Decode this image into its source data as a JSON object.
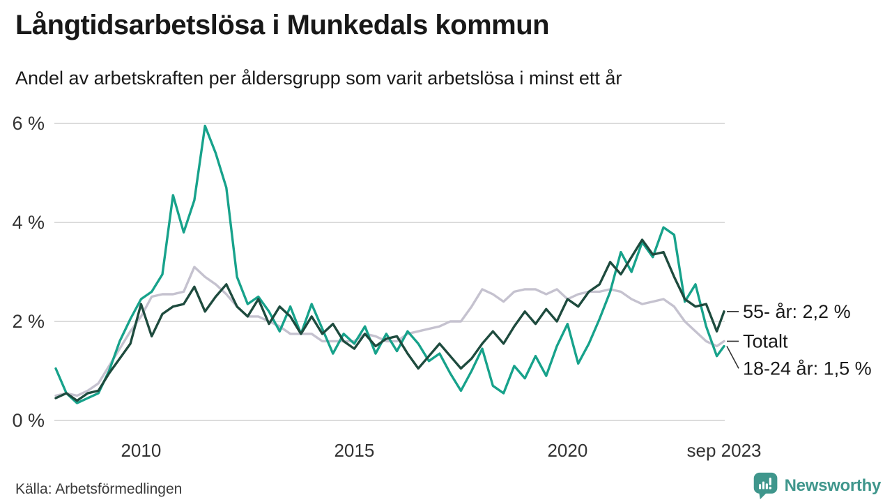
{
  "title": "Långtidsarbetslösa i Munkedals kommun",
  "subtitle": "Andel av arbetskraften per åldersgrupp som varit arbetslösa i minst ett år",
  "source": "Källa: Arbetsförmedlingen",
  "branding": {
    "name": "Newsworthy",
    "color": "#3f968c",
    "icon": "bar-chart-speech-bubble"
  },
  "colors": {
    "series_18_24": "#17a28b",
    "series_55plus": "#1e4b3e",
    "series_total": "#c5c2cf",
    "gridline": "#dcdcdc",
    "text": "#1a1a1a"
  },
  "chart_data": {
    "type": "line",
    "title": "Långtidsarbetslösa i Munkedals kommun",
    "subtitle": "Andel av arbetskraften per åldersgrupp som varit arbetslösa i minst ett år",
    "xlabel": "",
    "ylabel": "",
    "grid": "horizontal",
    "legend_position": "end-of-line-labels",
    "xlim": [
      2008,
      2023.67
    ],
    "ylim": [
      0,
      6
    ],
    "y_ticks": [
      {
        "value": 0,
        "label": "0 %"
      },
      {
        "value": 2,
        "label": "2 %"
      },
      {
        "value": 4,
        "label": "4 %"
      },
      {
        "value": 6,
        "label": "6 %"
      }
    ],
    "x_ticks": [
      {
        "value": 2010,
        "label": "2010"
      },
      {
        "value": 2015,
        "label": "2015"
      },
      {
        "value": 2020,
        "label": "2020"
      },
      {
        "value": 2023.67,
        "label": "sep 2023"
      }
    ],
    "x": [
      2008,
      2008.25,
      2008.5,
      2008.75,
      2009,
      2009.25,
      2009.5,
      2009.75,
      2010,
      2010.25,
      2010.5,
      2010.75,
      2011,
      2011.25,
      2011.5,
      2011.75,
      2012,
      2012.25,
      2012.5,
      2012.75,
      2013,
      2013.25,
      2013.5,
      2013.75,
      2014,
      2014.25,
      2014.5,
      2014.75,
      2015,
      2015.25,
      2015.5,
      2015.75,
      2016,
      2016.25,
      2016.5,
      2016.75,
      2017,
      2017.25,
      2017.5,
      2017.75,
      2018,
      2018.25,
      2018.5,
      2018.75,
      2019,
      2019.25,
      2019.5,
      2019.75,
      2020,
      2020.25,
      2020.5,
      2020.75,
      2021,
      2021.25,
      2021.5,
      2021.75,
      2022,
      2022.25,
      2022.5,
      2022.75,
      2023,
      2023.25,
      2023.5,
      2023.67
    ],
    "series": [
      {
        "name": "Totalt",
        "end_label": "Totalt",
        "color": "#c5c2cf",
        "values": [
          0.5,
          0.55,
          0.5,
          0.6,
          0.75,
          1.1,
          1.45,
          1.8,
          2.1,
          2.5,
          2.55,
          2.55,
          2.6,
          3.1,
          2.9,
          2.75,
          2.55,
          2.3,
          2.1,
          2.1,
          2.0,
          1.9,
          1.75,
          1.75,
          1.75,
          1.6,
          1.6,
          1.6,
          1.6,
          1.75,
          1.7,
          1.6,
          1.6,
          1.75,
          1.8,
          1.85,
          1.9,
          2.0,
          2.0,
          2.3,
          2.65,
          2.55,
          2.4,
          2.6,
          2.65,
          2.65,
          2.55,
          2.65,
          2.45,
          2.55,
          2.6,
          2.6,
          2.65,
          2.6,
          2.45,
          2.35,
          2.4,
          2.45,
          2.3,
          2.0,
          1.8,
          1.6,
          1.5,
          1.6
        ]
      },
      {
        "name": "18-24 år",
        "end_label": "18-24 år: 1,5 %",
        "end_value_text": "1,5 %",
        "color": "#17a28b",
        "values": [
          1.05,
          0.55,
          0.35,
          0.45,
          0.55,
          1.0,
          1.6,
          2.05,
          2.45,
          2.6,
          2.95,
          4.55,
          3.8,
          4.45,
          5.95,
          5.4,
          4.7,
          2.9,
          2.35,
          2.5,
          2.2,
          1.8,
          2.3,
          1.75,
          2.35,
          1.85,
          1.35,
          1.75,
          1.55,
          1.9,
          1.35,
          1.75,
          1.4,
          1.8,
          1.55,
          1.2,
          1.35,
          0.95,
          0.6,
          1.0,
          1.45,
          0.7,
          0.55,
          1.1,
          0.85,
          1.3,
          0.9,
          1.5,
          1.95,
          1.15,
          1.55,
          2.05,
          2.6,
          3.4,
          3.0,
          3.6,
          3.3,
          3.9,
          3.75,
          2.4,
          2.75,
          1.9,
          1.3,
          1.5
        ]
      },
      {
        "name": "55- år",
        "end_label": "55- år: 2,2 %",
        "end_value_text": "2,2 %",
        "color": "#1e4b3e",
        "values": [
          0.45,
          0.55,
          0.4,
          0.55,
          0.6,
          0.95,
          1.25,
          1.55,
          2.35,
          1.7,
          2.15,
          2.3,
          2.35,
          2.7,
          2.2,
          2.5,
          2.75,
          2.3,
          2.1,
          2.45,
          1.95,
          2.3,
          2.1,
          1.75,
          2.1,
          1.75,
          1.95,
          1.6,
          1.45,
          1.75,
          1.5,
          1.65,
          1.7,
          1.35,
          1.05,
          1.3,
          1.55,
          1.3,
          1.05,
          1.25,
          1.55,
          1.8,
          1.55,
          1.9,
          2.2,
          1.95,
          2.25,
          2.0,
          2.45,
          2.3,
          2.6,
          2.75,
          3.2,
          2.95,
          3.3,
          3.65,
          3.35,
          3.4,
          2.9,
          2.45,
          2.3,
          2.35,
          1.8,
          2.2
        ]
      }
    ]
  }
}
